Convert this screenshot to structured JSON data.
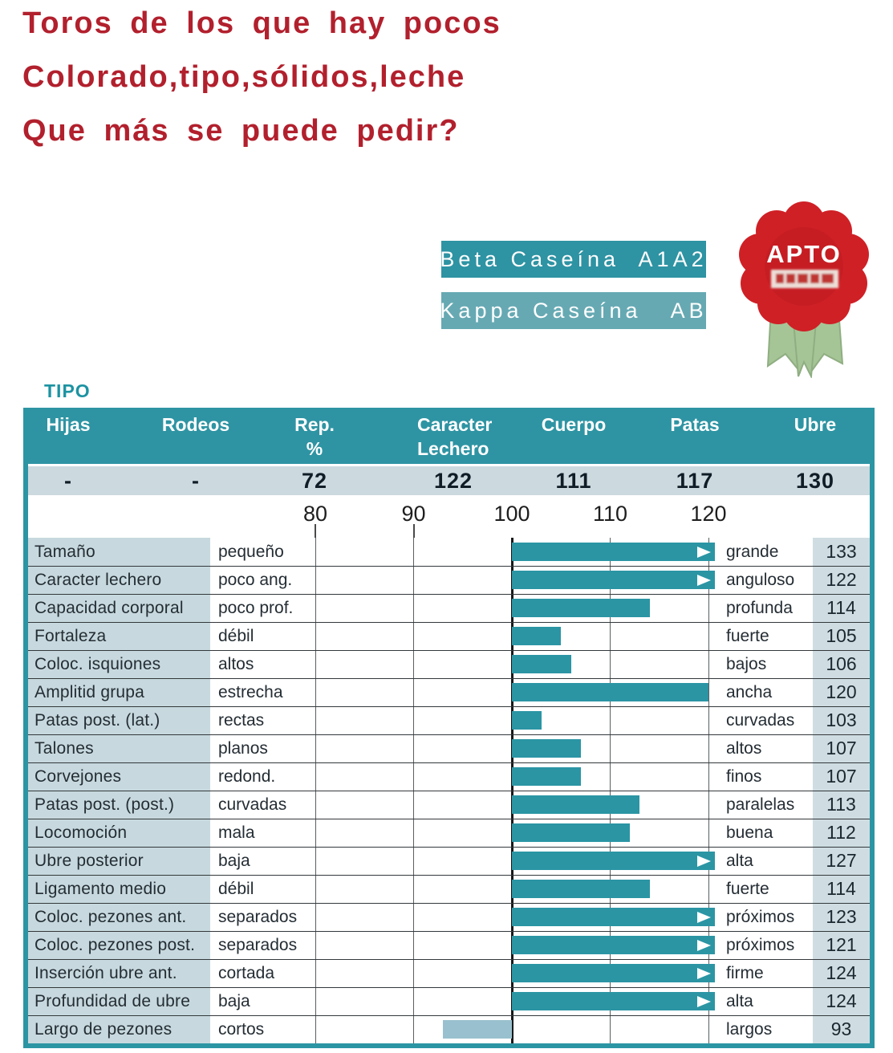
{
  "headline": {
    "lines": [
      "Toros de los que hay pocos",
      "Colorado,tipo,sólidos,leche",
      "Que más se puede pedir?"
    ],
    "color": "#b2202d"
  },
  "banners": {
    "beta": "Beta Caseína  A1A2",
    "kappa": "Kappa Caseína   AB"
  },
  "badge": {
    "label": "APTO"
  },
  "section_label": "TIPO",
  "summary": {
    "columns": [
      {
        "lines": "Hijas"
      },
      {
        "lines": "Rodeos"
      },
      {
        "lines": "Rep.\n%"
      },
      {
        "lines": "Caracter\nLechero"
      },
      {
        "lines": "Cuerpo"
      },
      {
        "lines": "Patas"
      },
      {
        "lines": "Ubre"
      }
    ],
    "values": [
      "-",
      "-",
      "72",
      "122",
      "111",
      "117",
      "130"
    ]
  },
  "colors": {
    "teal": "#2b95a4",
    "banner_light_teal": "#66a9b3",
    "light_bar": "#99c0ce",
    "label_column_bg": "#c7d9de",
    "value_column_bg": "#cfdde2",
    "summary_row_bg": "#ccd9de",
    "badge_red": "#cf2026",
    "ribbon_green": "#a5c596"
  },
  "chart_data": {
    "type": "bar",
    "orientation": "horizontal",
    "title": "TIPO",
    "baseline": 100,
    "xlim": [
      80,
      120
    ],
    "x_ticks": [
      80,
      90,
      100,
      110,
      120
    ],
    "grid": true,
    "categories": [
      "Tamaño",
      "Caracter lechero",
      "Capacidad corporal",
      "Fortaleza",
      "Coloc. isquiones",
      "Amplitid grupa",
      "Patas post. (lat.)",
      "Talones",
      "Corvejones",
      "Patas post. (post.)",
      "Locomoción",
      "Ubre posterior",
      "Ligamento medio",
      "Coloc. pezones ant.",
      "Coloc. pezones post.",
      "Inserción ubre ant.",
      "Profundidad de ubre",
      "Largo de pezones"
    ],
    "values": [
      133,
      122,
      114,
      105,
      106,
      120,
      103,
      107,
      107,
      113,
      112,
      127,
      114,
      123,
      121,
      124,
      124,
      93
    ],
    "low_anchors": [
      "pequeño",
      "poco ang.",
      "poco prof.",
      "débil",
      "altos",
      "estrecha",
      "rectas",
      "planos",
      "redond.",
      "curvadas",
      "mala",
      "baja",
      "débil",
      "separados",
      "separados",
      "cortada",
      "baja",
      "cortos"
    ],
    "high_anchors": [
      "grande",
      "anguloso",
      "profunda",
      "fuerte",
      "bajos",
      "ancha",
      "curvadas",
      "altos",
      "finos",
      "paralelas",
      "buena",
      "alta",
      "fuerte",
      "próximos",
      "próximos",
      "firme",
      "alta",
      "largos"
    ],
    "summary_row": {
      "Hijas": "-",
      "Rodeos": "-",
      "Rep. %": 72,
      "Caracter Lechero": 122,
      "Cuerpo": 111,
      "Patas": 117,
      "Ubre": 130
    }
  }
}
